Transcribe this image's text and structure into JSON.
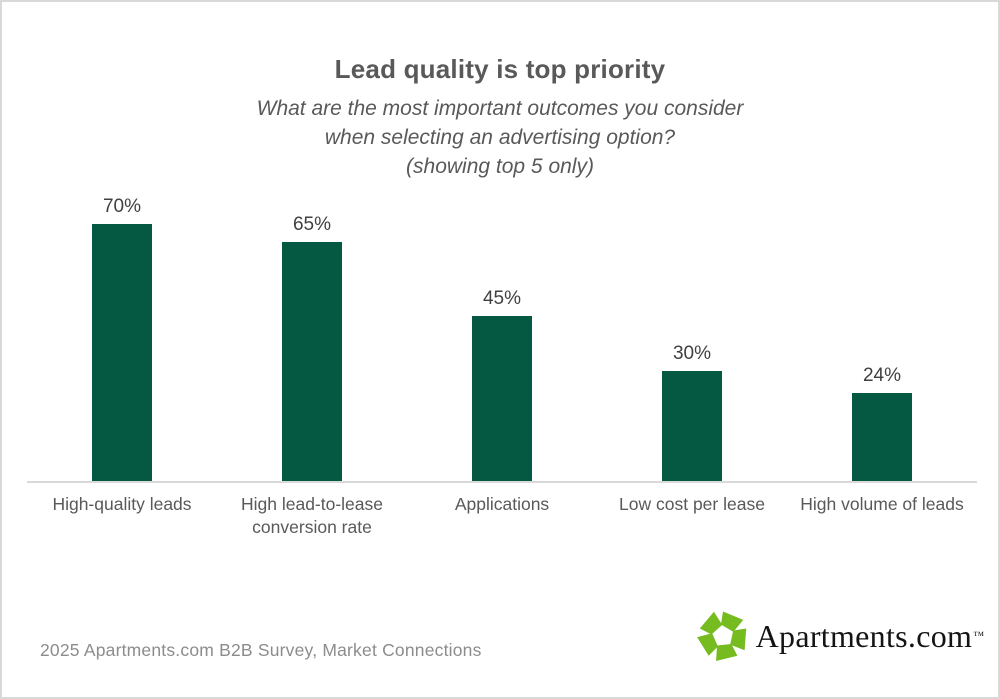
{
  "header": {
    "title": "Lead quality is top priority",
    "subtitle_line1": "What are the most important outcomes you consider",
    "subtitle_line2": "when selecting an advertising option?",
    "subtitle_line3": "(showing top 5 only)"
  },
  "chart_data": {
    "type": "bar",
    "categories": [
      "High-quality leads",
      "High lead-to-lease conversion rate",
      "Applications",
      "Low cost per lease",
      "High volume of leads"
    ],
    "values": [
      70,
      65,
      45,
      30,
      24
    ],
    "value_labels": [
      "70%",
      "65%",
      "45%",
      "30%",
      "24%"
    ],
    "title": "Lead quality is top priority",
    "subtitle": "What are the most important outcomes you consider when selecting an advertising option? (showing top 5 only)",
    "xlabel": "",
    "ylabel": "",
    "ylim": [
      0,
      75
    ],
    "grid": false,
    "legend": false,
    "bar_color": "#055943",
    "axis_color": "#d9d9d9",
    "value_label_color": "#404040",
    "category_label_color": "#595959"
  },
  "footer": {
    "source_text": "2025 Apartments.com B2B Survey, Market Connections",
    "logo_text": "Apartments.com",
    "logo_tm": "™",
    "logo_green": "#76bc21"
  }
}
